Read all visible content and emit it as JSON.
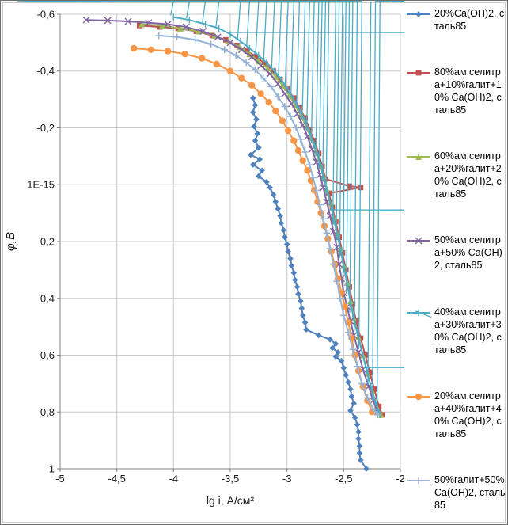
{
  "style": {
    "grid_color": "#c8c8c8",
    "axis_color": "#808080",
    "text_color": "#1a1a1a",
    "background": "#ffffff"
  },
  "chart_data": {
    "type": "line",
    "title": "",
    "legend_position": "right",
    "grid": true,
    "x_axis": {
      "title": "lg i, А/см²",
      "min": -5,
      "max": -2,
      "tick_values": [
        -5,
        -4.5,
        -4,
        -3.5,
        -3,
        -2.5,
        -2
      ],
      "tick_labels": [
        "-5",
        "-4,5",
        "-4",
        "-3,5",
        "-3",
        "-2,5",
        "-2"
      ]
    },
    "y_axis": {
      "title": "φ,В",
      "min": -0.6,
      "max": 1,
      "inverted": true,
      "tick_values": [
        -0.6,
        -0.4,
        -0.2,
        0,
        0.2,
        0.4,
        0.6,
        0.8,
        1
      ],
      "tick_labels": [
        "-0,6",
        "-0,4",
        "-0,2",
        "1Е-15",
        "0,2",
        "0,4",
        "0,6",
        "0,8",
        "1"
      ]
    },
    "series": [
      {
        "name": "20%Ca(OH)2, сталь85",
        "color": "#4F81BD",
        "marker": "diamond",
        "points": [
          [
            -3.3,
            -0.305
          ],
          [
            -3.28,
            -0.28
          ],
          [
            -3.3,
            -0.255
          ],
          [
            -3.27,
            -0.23
          ],
          [
            -3.29,
            -0.205
          ],
          [
            -3.26,
            -0.18
          ],
          [
            -3.28,
            -0.155
          ],
          [
            -3.25,
            -0.13
          ],
          [
            -3.32,
            -0.105
          ],
          [
            -3.24,
            -0.09
          ],
          [
            -3.3,
            -0.07
          ],
          [
            -3.22,
            -0.05
          ],
          [
            -3.25,
            -0.03
          ],
          [
            -3.18,
            -0.01
          ],
          [
            -3.15,
            0.01
          ],
          [
            -3.12,
            0.035
          ],
          [
            -3.1,
            0.06
          ],
          [
            -3.08,
            0.085
          ],
          [
            -3.06,
            0.11
          ],
          [
            -3.05,
            0.135
          ],
          [
            -3.03,
            0.16
          ],
          [
            -3.02,
            0.185
          ],
          [
            -3.0,
            0.21
          ],
          [
            -2.99,
            0.235
          ],
          [
            -2.97,
            0.26
          ],
          [
            -2.96,
            0.285
          ],
          [
            -2.94,
            0.31
          ],
          [
            -2.93,
            0.335
          ],
          [
            -2.91,
            0.36
          ],
          [
            -2.9,
            0.385
          ],
          [
            -2.88,
            0.41
          ],
          [
            -2.87,
            0.435
          ],
          [
            -2.86,
            0.46
          ],
          [
            -2.84,
            0.485
          ],
          [
            -2.83,
            0.51
          ],
          [
            -2.72,
            0.53
          ],
          [
            -2.62,
            0.545
          ],
          [
            -2.57,
            0.56
          ],
          [
            -2.6,
            0.575
          ],
          [
            -2.55,
            0.59
          ],
          [
            -2.57,
            0.605
          ],
          [
            -2.52,
            0.62
          ],
          [
            -2.5,
            0.645
          ],
          [
            -2.48,
            0.67
          ],
          [
            -2.46,
            0.695
          ],
          [
            -2.44,
            0.72
          ],
          [
            -2.43,
            0.745
          ],
          [
            -2.41,
            0.77
          ],
          [
            -2.44,
            0.795
          ],
          [
            -2.4,
            0.82
          ],
          [
            -2.38,
            0.845
          ],
          [
            -2.37,
            0.87
          ],
          [
            -2.37,
            0.895
          ],
          [
            -2.36,
            0.92
          ],
          [
            -2.36,
            0.945
          ],
          [
            -2.35,
            0.97
          ],
          [
            -2.3,
            1.0
          ]
        ]
      },
      {
        "name": "80%ам.селитра+10%галит+10% Ca(OH)2, сталь85",
        "color": "#C0504D",
        "marker": "square",
        "points": [
          [
            -4.3,
            -0.56
          ],
          [
            -4.12,
            -0.555
          ],
          [
            -3.96,
            -0.55
          ],
          [
            -3.8,
            -0.54
          ],
          [
            -3.66,
            -0.525
          ],
          [
            -3.54,
            -0.51
          ],
          [
            -3.44,
            -0.49
          ],
          [
            -3.35,
            -0.47
          ],
          [
            -3.27,
            -0.45
          ],
          [
            -3.19,
            -0.425
          ],
          [
            -3.12,
            -0.4
          ],
          [
            -3.06,
            -0.37
          ],
          [
            -3.0,
            -0.34
          ],
          [
            -2.94,
            -0.305
          ],
          [
            -2.89,
            -0.27
          ],
          [
            -2.84,
            -0.235
          ],
          [
            -2.8,
            -0.195
          ],
          [
            -2.76,
            -0.155
          ],
          [
            -2.72,
            -0.11
          ],
          [
            -2.69,
            -0.065
          ],
          [
            -2.66,
            -0.02
          ],
          [
            -2.45,
            0.005
          ],
          [
            -2.35,
            0.01
          ],
          [
            -2.63,
            0.03
          ],
          [
            -2.6,
            0.08
          ],
          [
            -2.57,
            0.13
          ],
          [
            -2.54,
            0.185
          ],
          [
            -2.51,
            0.24
          ],
          [
            -2.48,
            0.3
          ],
          [
            -2.45,
            0.36
          ],
          [
            -2.42,
            0.42
          ],
          [
            -2.39,
            0.48
          ],
          [
            -2.35,
            0.54
          ],
          [
            -2.31,
            0.6
          ],
          [
            -2.27,
            0.66
          ],
          [
            -2.23,
            0.72
          ],
          [
            -2.19,
            0.78
          ],
          [
            -2.16,
            0.81
          ]
        ]
      },
      {
        "name": "60%ам.селитра+20%галит+20% Ca(OH)2, сталь85",
        "color": "#9BBB59",
        "marker": "triangle",
        "points": [
          [
            -4.28,
            -0.565
          ],
          [
            -4.1,
            -0.56
          ],
          [
            -3.94,
            -0.55
          ],
          [
            -3.78,
            -0.54
          ],
          [
            -3.64,
            -0.525
          ],
          [
            -3.52,
            -0.505
          ],
          [
            -3.42,
            -0.485
          ],
          [
            -3.33,
            -0.46
          ],
          [
            -3.25,
            -0.435
          ],
          [
            -3.17,
            -0.41
          ],
          [
            -3.1,
            -0.38
          ],
          [
            -3.04,
            -0.35
          ],
          [
            -2.98,
            -0.315
          ],
          [
            -2.93,
            -0.28
          ],
          [
            -2.88,
            -0.245
          ],
          [
            -2.83,
            -0.205
          ],
          [
            -2.79,
            -0.165
          ],
          [
            -2.75,
            -0.12
          ],
          [
            -2.71,
            -0.075
          ],
          [
            -2.68,
            -0.03
          ],
          [
            -2.65,
            0.015
          ],
          [
            -2.62,
            0.065
          ],
          [
            -2.59,
            0.115
          ],
          [
            -2.56,
            0.17
          ],
          [
            -2.53,
            0.225
          ],
          [
            -2.5,
            0.285
          ],
          [
            -2.47,
            0.345
          ],
          [
            -2.44,
            0.41
          ],
          [
            -2.41,
            0.47
          ],
          [
            -2.37,
            0.535
          ],
          [
            -2.33,
            0.6
          ],
          [
            -2.29,
            0.665
          ],
          [
            -2.25,
            0.725
          ],
          [
            -2.21,
            0.78
          ],
          [
            -2.17,
            0.81
          ]
        ]
      },
      {
        "name": "50%ам.селитра+50% Ca(OH)2, сталь85",
        "color": "#8064A2",
        "marker": "x",
        "points": [
          [
            -4.77,
            -0.58
          ],
          [
            -4.58,
            -0.578
          ],
          [
            -4.4,
            -0.575
          ],
          [
            -4.22,
            -0.57
          ],
          [
            -4.05,
            -0.565
          ],
          [
            -3.89,
            -0.555
          ],
          [
            -3.74,
            -0.54
          ],
          [
            -3.61,
            -0.52
          ],
          [
            -3.5,
            -0.5
          ],
          [
            -3.4,
            -0.475
          ],
          [
            -3.31,
            -0.45
          ],
          [
            -3.23,
            -0.42
          ],
          [
            -3.15,
            -0.39
          ],
          [
            -3.08,
            -0.355
          ],
          [
            -3.02,
            -0.32
          ],
          [
            -2.96,
            -0.285
          ],
          [
            -2.91,
            -0.25
          ],
          [
            -2.86,
            -0.21
          ],
          [
            -2.82,
            -0.17
          ],
          [
            -2.78,
            -0.125
          ],
          [
            -2.74,
            -0.08
          ],
          [
            -2.71,
            -0.035
          ],
          [
            -2.68,
            0.01
          ],
          [
            -2.65,
            0.06
          ],
          [
            -2.62,
            0.11
          ],
          [
            -2.59,
            0.165
          ],
          [
            -2.56,
            0.22
          ],
          [
            -2.54,
            0.28
          ],
          [
            -2.52,
            0.33
          ],
          [
            -2.5,
            0.38
          ],
          [
            -2.47,
            0.43
          ],
          [
            -2.44,
            0.48
          ],
          [
            -2.41,
            0.53
          ],
          [
            -2.37,
            0.59
          ],
          [
            -2.33,
            0.65
          ],
          [
            -2.28,
            0.71
          ],
          [
            -2.24,
            0.76
          ],
          [
            -2.2,
            0.8
          ]
        ]
      },
      {
        "name": "40%ам.селитра+30%галит+30% Ca(OH)2, сталь85",
        "color": "#4BACC6",
        "marker": "asterisk",
        "points": [
          [
            -4.0,
            -0.59
          ],
          [
            -3.86,
            -0.58
          ],
          [
            -3.72,
            -0.565
          ],
          [
            -3.6,
            -0.55
          ],
          [
            -3.5,
            -0.53
          ],
          [
            -3.41,
            -0.505
          ],
          [
            -3.33,
            -0.48
          ],
          [
            -3.25,
            -0.455
          ],
          [
            -3.18,
            -0.43
          ],
          [
            -3.11,
            -0.4
          ],
          [
            -3.05,
            -0.37
          ],
          [
            -2.99,
            -0.335
          ],
          [
            -2.94,
            -0.3
          ],
          [
            -2.89,
            -0.265
          ],
          [
            -2.84,
            -0.225
          ],
          [
            -2.8,
            -0.185
          ],
          [
            -2.76,
            -0.14
          ],
          [
            -2.72,
            -0.095
          ],
          [
            -2.69,
            -0.05
          ],
          [
            -2.66,
            -0.005
          ],
          [
            -2.63,
            0.045
          ],
          [
            -2.6,
            0.095
          ],
          [
            -2.57,
            0.15
          ],
          [
            -2.54,
            0.205
          ],
          [
            -2.51,
            0.265
          ],
          [
            -2.48,
            0.325
          ],
          [
            -2.45,
            0.39
          ],
          [
            -2.42,
            0.455
          ],
          [
            -2.38,
            0.52
          ],
          [
            -2.34,
            0.585
          ],
          [
            -2.3,
            0.65
          ],
          [
            -2.26,
            0.71
          ],
          [
            -2.22,
            0.765
          ],
          [
            -2.18,
            0.81
          ]
        ]
      },
      {
        "name": "20%ам.селитра+40%галит+40% Ca(OH)2, сталь85",
        "color": "#F79646",
        "marker": "circle",
        "points": [
          [
            -4.35,
            -0.48
          ],
          [
            -4.2,
            -0.475
          ],
          [
            -4.05,
            -0.47
          ],
          [
            -3.9,
            -0.46
          ],
          [
            -3.75,
            -0.445
          ],
          [
            -3.62,
            -0.425
          ],
          [
            -3.5,
            -0.4
          ],
          [
            -3.4,
            -0.375
          ],
          [
            -3.31,
            -0.35
          ],
          [
            -3.23,
            -0.32
          ],
          [
            -3.16,
            -0.29
          ],
          [
            -3.1,
            -0.26
          ],
          [
            -3.04,
            -0.225
          ],
          [
            -2.99,
            -0.19
          ],
          [
            -2.94,
            -0.155
          ],
          [
            -2.9,
            -0.12
          ],
          [
            -2.86,
            -0.085
          ],
          [
            -2.82,
            -0.05
          ],
          [
            -2.79,
            -0.015
          ],
          [
            -2.76,
            0.02
          ],
          [
            -2.73,
            0.06
          ],
          [
            -2.7,
            0.1
          ],
          [
            -2.67,
            0.145
          ],
          [
            -2.64,
            0.19
          ],
          [
            -2.61,
            0.235
          ],
          [
            -2.58,
            0.28
          ],
          [
            -2.55,
            0.33
          ],
          [
            -2.52,
            0.38
          ],
          [
            -2.49,
            0.43
          ],
          [
            -2.46,
            0.485
          ],
          [
            -2.43,
            0.54
          ],
          [
            -2.4,
            0.6
          ],
          [
            -2.37,
            0.655
          ],
          [
            -2.33,
            0.71
          ],
          [
            -2.29,
            0.76
          ],
          [
            -2.25,
            0.8
          ]
        ]
      },
      {
        "name": "50%галит+50% Ca(OH)2, сталь85",
        "color": "#95B3D7",
        "marker": "plus",
        "points": [
          [
            -4.13,
            -0.525
          ],
          [
            -3.97,
            -0.52
          ],
          [
            -3.81,
            -0.51
          ],
          [
            -3.67,
            -0.495
          ],
          [
            -3.55,
            -0.475
          ],
          [
            -3.45,
            -0.455
          ],
          [
            -3.36,
            -0.43
          ],
          [
            -3.28,
            -0.405
          ],
          [
            -3.21,
            -0.375
          ],
          [
            -3.14,
            -0.345
          ],
          [
            -3.08,
            -0.31
          ],
          [
            -3.02,
            -0.275
          ],
          [
            -2.97,
            -0.24
          ],
          [
            -2.92,
            -0.2
          ],
          [
            -2.88,
            -0.16
          ],
          [
            -2.84,
            -0.115
          ],
          [
            -2.8,
            -0.07
          ],
          [
            -2.77,
            -0.025
          ],
          [
            -2.74,
            0.02
          ],
          [
            -2.71,
            0.07
          ],
          [
            -2.68,
            0.12
          ],
          [
            -2.65,
            0.17
          ],
          [
            -2.62,
            0.225
          ],
          [
            -2.59,
            0.28
          ],
          [
            -2.56,
            0.34
          ],
          [
            -2.53,
            0.4
          ],
          [
            -2.5,
            0.46
          ],
          [
            -2.46,
            0.52
          ],
          [
            -2.42,
            0.58
          ],
          [
            -2.38,
            0.64
          ],
          [
            -2.34,
            0.7
          ],
          [
            -2.29,
            0.75
          ],
          [
            -2.24,
            0.79
          ],
          [
            -2.2,
            0.81
          ]
        ]
      }
    ]
  }
}
